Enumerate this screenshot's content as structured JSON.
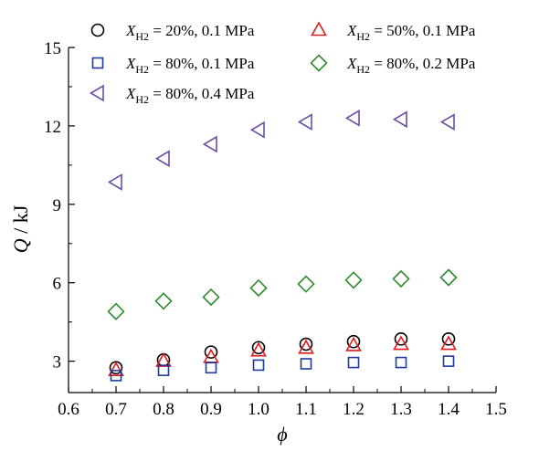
{
  "chart_data": {
    "type": "scatter",
    "title": "",
    "xlabel": "ϕ",
    "ylabel_symbol": "Q",
    "ylabel_unit": " / kJ",
    "xlim": [
      0.6,
      1.5
    ],
    "ylim": [
      1.8,
      15
    ],
    "xticks": [
      0.6,
      0.7,
      0.8,
      0.9,
      1.0,
      1.1,
      1.2,
      1.3,
      1.4,
      1.5
    ],
    "xtick_labels": [
      "0.6",
      "0.7",
      "0.8",
      "0.9",
      "1.0",
      "1.1",
      "1.2",
      "1.3",
      "1.4",
      "1.5"
    ],
    "yticks": [
      3,
      6,
      9,
      12,
      15
    ],
    "ytick_labels": [
      "3",
      "6",
      "9",
      "12",
      "15"
    ],
    "grid": false,
    "legend_position": "top",
    "x": [
      0.7,
      0.8,
      0.9,
      1.0,
      1.1,
      1.2,
      1.3,
      1.4
    ],
    "series": [
      {
        "symbol": "X",
        "subscript": "H2",
        "rest": " = 20%, 0.1 MPa",
        "marker": "circle",
        "color": "#000000",
        "values": [
          2.75,
          3.05,
          3.35,
          3.52,
          3.65,
          3.75,
          3.85,
          3.85
        ]
      },
      {
        "symbol": "X",
        "subscript": "H2",
        "rest": " = 50%, 0.1 MPa",
        "marker": "triangle-up",
        "color": "#e41a1c",
        "values": [
          2.65,
          3.0,
          3.15,
          3.4,
          3.5,
          3.6,
          3.65,
          3.65
        ]
      },
      {
        "symbol": "X",
        "subscript": "H2",
        "rest": " = 80%, 0.1 MPa",
        "marker": "square",
        "color": "#1f3a9e",
        "values": [
          2.45,
          2.65,
          2.75,
          2.85,
          2.9,
          2.95,
          2.95,
          3.0
        ]
      },
      {
        "symbol": "X",
        "subscript": "H2",
        "rest": " = 80%, 0.2 MPa",
        "marker": "diamond",
        "color": "#2e8b2e",
        "values": [
          4.9,
          5.3,
          5.45,
          5.8,
          5.95,
          6.1,
          6.15,
          6.2
        ]
      },
      {
        "symbol": "X",
        "subscript": "H2",
        "rest": " = 80%, 0.4 MPa",
        "marker": "triangle-left",
        "color": "#6a4fa3",
        "values": [
          9.85,
          10.75,
          11.3,
          11.85,
          12.15,
          12.3,
          12.25,
          12.15
        ]
      }
    ]
  }
}
